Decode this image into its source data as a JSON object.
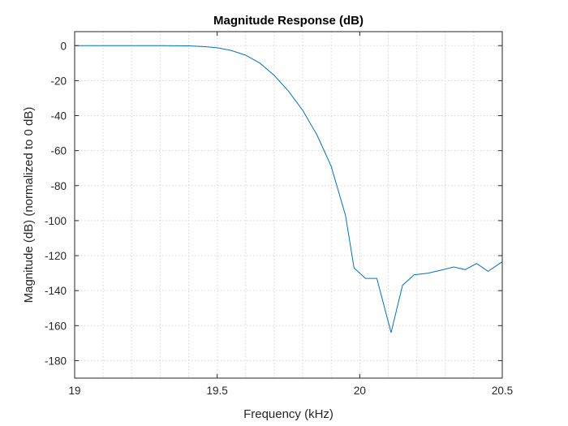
{
  "chart_data": {
    "type": "line",
    "title": "Magnitude Response (dB)",
    "xlabel": "Frequency (kHz)",
    "ylabel": "Magnitude (dB) (normalized to 0 dB)",
    "xlim": [
      19,
      20.5
    ],
    "ylim": [
      -190,
      8
    ],
    "grid": true,
    "xticks": [
      19,
      19.5,
      20,
      20.5
    ],
    "xtick_labels": [
      "19",
      "19.5",
      "20",
      "20.5"
    ],
    "yticks": [
      0,
      -20,
      -40,
      -60,
      -80,
      -100,
      -120,
      -140,
      -160,
      -180
    ],
    "ytick_labels": [
      "0",
      "-20",
      "-40",
      "-60",
      "-80",
      "-100",
      "-120",
      "-140",
      "-160",
      "-180"
    ],
    "xgrid": [
      19.1,
      19.2,
      19.3,
      19.4,
      19.5,
      19.6,
      19.7,
      19.8,
      19.9,
      20,
      20.1,
      20.2,
      20.3,
      20.4
    ],
    "series": [
      {
        "name": "Magnitude",
        "color": "#0072bd",
        "x": [
          19.0,
          19.1,
          19.2,
          19.3,
          19.4,
          19.45,
          19.5,
          19.55,
          19.6,
          19.65,
          19.7,
          19.75,
          19.8,
          19.85,
          19.9,
          19.95,
          19.98,
          20.02,
          20.06,
          20.11,
          20.15,
          20.19,
          20.24,
          20.28,
          20.33,
          20.37,
          20.41,
          20.45,
          20.5
        ],
        "y": [
          0,
          0,
          0,
          0,
          -0.1,
          -0.5,
          -1.2,
          -2.8,
          -5.5,
          -10,
          -17,
          -26,
          -37,
          -51,
          -69,
          -97,
          -127,
          -133,
          -133,
          -164,
          -137,
          -131,
          -130,
          -128.5,
          -126.5,
          -128,
          -124.5,
          -129,
          -123.5
        ]
      }
    ]
  }
}
